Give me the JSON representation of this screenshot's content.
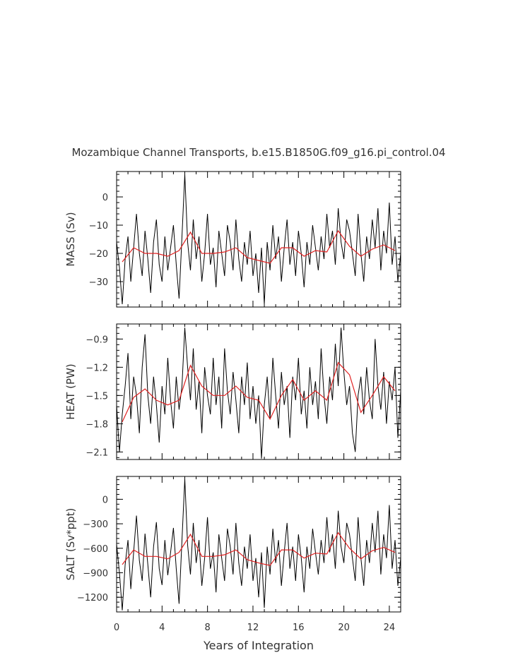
{
  "chart_data": {
    "type": "line",
    "title": "Mozambique Channel Transports, b.e15.B1850G.f09_g16.pi_control.04",
    "xlabel": "Years of Integration",
    "xlim": [
      0,
      25
    ],
    "xticks": [
      "0",
      "4",
      "8",
      "12",
      "16",
      "20",
      "24"
    ],
    "colors": {
      "monthly": "#000000",
      "annual": "#e02020"
    },
    "panels": [
      {
        "ylabel": "MASS (Sv)",
        "ylim": [
          -39,
          9
        ],
        "yticks": [
          "0",
          "−10",
          "−20",
          "−30"
        ],
        "annual_x": [
          0.5,
          1.5,
          2.5,
          3.5,
          4.5,
          5.5,
          6.5,
          7.5,
          8.5,
          9.5,
          10.5,
          11.5,
          12.5,
          13.5,
          14.5,
          15.5,
          16.5,
          17.5,
          18.5,
          19.5,
          20.5,
          21.5,
          22.5,
          23.5,
          24.5
        ],
        "annual_y": [
          -23,
          -18,
          -20,
          -20,
          -21,
          -19,
          -12.5,
          -20,
          -20,
          -19.5,
          -18,
          -21.5,
          -22.5,
          -23.5,
          -18,
          -18,
          -21,
          -19,
          -19.5,
          -12,
          -17.5,
          -21,
          -18.5,
          -17,
          -19
        ],
        "monthly_x": [
          0.0,
          0.25,
          0.5,
          0.75,
          1.0,
          1.25,
          1.5,
          1.75,
          2.0,
          2.25,
          2.5,
          2.75,
          3.0,
          3.25,
          3.5,
          3.75,
          4.0,
          4.25,
          4.5,
          4.75,
          5.0,
          5.25,
          5.5,
          5.75,
          6.0,
          6.25,
          6.5,
          6.75,
          7.0,
          7.25,
          7.5,
          7.75,
          8.0,
          8.25,
          8.5,
          8.75,
          9.0,
          9.25,
          9.5,
          9.75,
          10.0,
          10.25,
          10.5,
          10.75,
          11.0,
          11.25,
          11.5,
          11.75,
          12.0,
          12.25,
          12.5,
          12.75,
          13.0,
          13.25,
          13.5,
          13.75,
          14.0,
          14.25,
          14.5,
          14.75,
          15.0,
          15.25,
          15.5,
          15.75,
          16.0,
          16.25,
          16.5,
          16.75,
          17.0,
          17.25,
          17.5,
          17.75,
          18.0,
          18.25,
          18.5,
          18.75,
          19.0,
          19.25,
          19.5,
          19.75,
          20.0,
          20.25,
          20.5,
          20.75,
          21.0,
          21.25,
          21.5,
          21.75,
          22.0,
          22.25,
          22.5,
          22.75,
          23.0,
          23.25,
          23.5,
          23.75,
          24.0,
          24.25,
          24.5,
          24.75,
          25.0
        ],
        "monthly_y": [
          -16,
          -25,
          -38,
          -22,
          -14,
          -30,
          -18,
          -6,
          -20,
          -28,
          -12,
          -22,
          -34,
          -16,
          -8,
          -24,
          -30,
          -14,
          -26,
          -18,
          -10,
          -24,
          -36,
          -14,
          8,
          -16,
          -26,
          -8,
          -22,
          -14,
          -30,
          -20,
          -6,
          -24,
          -18,
          -32,
          -12,
          -20,
          -28,
          -10,
          -16,
          -26,
          -8,
          -22,
          -30,
          -16,
          -24,
          -12,
          -28,
          -20,
          -34,
          -18,
          -38,
          -16,
          -26,
          -10,
          -22,
          -14,
          -30,
          -18,
          -8,
          -24,
          -16,
          -28,
          -12,
          -20,
          -32,
          -16,
          -24,
          -10,
          -18,
          -26,
          -14,
          -22,
          -6,
          -18,
          -12,
          -24,
          -4,
          -16,
          -22,
          -8,
          -12,
          -20,
          -28,
          -6,
          -20,
          -30,
          -14,
          -22,
          -8,
          -18,
          -4,
          -26,
          -12,
          -20,
          -2,
          -24,
          -14,
          -30,
          -20
        ]
      },
      {
        "ylabel": "HEAT (PW)",
        "ylim": [
          -2.18,
          -0.74
        ],
        "yticks": [
          "−0.9",
          "−1.2",
          "−1.5",
          "−1.8",
          "−2.1"
        ],
        "annual_x": [
          0.5,
          1.5,
          2.5,
          3.5,
          4.5,
          5.5,
          6.5,
          7.5,
          8.5,
          9.5,
          10.5,
          11.5,
          12.5,
          13.5,
          14.5,
          15.5,
          16.5,
          17.5,
          18.5,
          19.5,
          20.5,
          21.5,
          22.5,
          23.5,
          24.5
        ],
        "annual_y": [
          -1.78,
          -1.52,
          -1.43,
          -1.55,
          -1.6,
          -1.55,
          -1.18,
          -1.4,
          -1.5,
          -1.5,
          -1.4,
          -1.52,
          -1.55,
          -1.75,
          -1.5,
          -1.33,
          -1.55,
          -1.45,
          -1.55,
          -1.15,
          -1.28,
          -1.68,
          -1.5,
          -1.3,
          -1.45
        ],
        "monthly_x": [
          0.0,
          0.25,
          0.5,
          0.75,
          1.0,
          1.25,
          1.5,
          1.75,
          2.0,
          2.25,
          2.5,
          2.75,
          3.0,
          3.25,
          3.5,
          3.75,
          4.0,
          4.25,
          4.5,
          4.75,
          5.0,
          5.25,
          5.5,
          5.75,
          6.0,
          6.25,
          6.5,
          6.75,
          7.0,
          7.25,
          7.5,
          7.75,
          8.0,
          8.25,
          8.5,
          8.75,
          9.0,
          9.25,
          9.5,
          9.75,
          10.0,
          10.25,
          10.5,
          10.75,
          11.0,
          11.25,
          11.5,
          11.75,
          12.0,
          12.25,
          12.5,
          12.75,
          13.0,
          13.25,
          13.5,
          13.75,
          14.0,
          14.25,
          14.5,
          14.75,
          15.0,
          15.25,
          15.5,
          15.75,
          16.0,
          16.25,
          16.5,
          16.75,
          17.0,
          17.25,
          17.5,
          17.75,
          18.0,
          18.25,
          18.5,
          18.75,
          19.0,
          19.25,
          19.5,
          19.75,
          20.0,
          20.25,
          20.5,
          20.75,
          21.0,
          21.25,
          21.5,
          21.75,
          22.0,
          22.25,
          22.5,
          22.75,
          23.0,
          23.25,
          23.5,
          23.75,
          24.0,
          24.25,
          24.5,
          24.75,
          25.0
        ],
        "monthly_y": [
          -1.6,
          -2.1,
          -1.7,
          -1.4,
          -1.05,
          -1.75,
          -1.3,
          -1.5,
          -1.9,
          -1.2,
          -0.85,
          -1.5,
          -1.8,
          -1.3,
          -1.6,
          -2.0,
          -1.4,
          -1.7,
          -1.1,
          -1.55,
          -1.85,
          -1.3,
          -1.65,
          -1.4,
          -0.78,
          -1.2,
          -1.55,
          -1.0,
          -1.65,
          -1.35,
          -1.9,
          -1.2,
          -1.5,
          -1.7,
          -1.1,
          -1.6,
          -1.3,
          -1.85,
          -1.0,
          -1.45,
          -1.7,
          -1.25,
          -1.55,
          -1.9,
          -1.3,
          -1.6,
          -1.15,
          -1.75,
          -1.4,
          -1.8,
          -1.5,
          -2.17,
          -1.6,
          -1.3,
          -1.75,
          -1.1,
          -1.5,
          -1.85,
          -1.25,
          -1.6,
          -1.4,
          -1.95,
          -1.3,
          -1.55,
          -1.1,
          -1.7,
          -1.45,
          -1.85,
          -1.2,
          -1.6,
          -1.35,
          -1.75,
          -1.0,
          -1.5,
          -1.8,
          -1.3,
          -1.55,
          -0.95,
          -1.4,
          -0.78,
          -1.25,
          -1.6,
          -1.4,
          -1.9,
          -2.1,
          -1.5,
          -1.3,
          -1.7,
          -1.2,
          -1.55,
          -1.75,
          -0.9,
          -1.4,
          -1.65,
          -1.25,
          -1.8,
          -1.35,
          -1.55,
          -1.2,
          -1.95,
          -1.45
        ]
      },
      {
        "ylabel": "SALT (Sv*ppt)",
        "ylim": [
          -1380,
          280
        ],
        "yticks": [
          "0",
          "−300",
          "−600",
          "−900",
          "−1200"
        ],
        "annual_x": [
          0.5,
          1.5,
          2.5,
          3.5,
          4.5,
          5.5,
          6.5,
          7.5,
          8.5,
          9.5,
          10.5,
          11.5,
          12.5,
          13.5,
          14.5,
          15.5,
          16.5,
          17.5,
          18.5,
          19.5,
          20.5,
          21.5,
          22.5,
          23.5,
          24.5
        ],
        "annual_y": [
          -800,
          -620,
          -700,
          -700,
          -730,
          -650,
          -430,
          -700,
          -700,
          -680,
          -620,
          -740,
          -780,
          -810,
          -620,
          -620,
          -720,
          -660,
          -670,
          -410,
          -600,
          -730,
          -630,
          -590,
          -650
        ],
        "monthly_x": [
          0.0,
          0.25,
          0.5,
          0.75,
          1.0,
          1.25,
          1.5,
          1.75,
          2.0,
          2.25,
          2.5,
          2.75,
          3.0,
          3.25,
          3.5,
          3.75,
          4.0,
          4.25,
          4.5,
          4.75,
          5.0,
          5.25,
          5.5,
          5.75,
          6.0,
          6.25,
          6.5,
          6.75,
          7.0,
          7.25,
          7.5,
          7.75,
          8.0,
          8.25,
          8.5,
          8.75,
          9.0,
          9.25,
          9.5,
          9.75,
          10.0,
          10.25,
          10.5,
          10.75,
          11.0,
          11.25,
          11.5,
          11.75,
          12.0,
          12.25,
          12.5,
          12.75,
          13.0,
          13.25,
          13.5,
          13.75,
          14.0,
          14.25,
          14.5,
          14.75,
          15.0,
          15.25,
          15.5,
          15.75,
          16.0,
          16.25,
          16.5,
          16.75,
          17.0,
          17.25,
          17.5,
          17.75,
          18.0,
          18.25,
          18.5,
          18.75,
          19.0,
          19.25,
          19.5,
          19.75,
          20.0,
          20.25,
          20.5,
          20.75,
          21.0,
          21.25,
          21.5,
          21.75,
          22.0,
          22.25,
          22.5,
          22.75,
          23.0,
          23.25,
          23.5,
          23.75,
          24.0,
          24.25,
          24.5,
          24.75,
          25.0
        ],
        "monthly_y": [
          -550,
          -900,
          -1360,
          -800,
          -500,
          -1100,
          -650,
          -200,
          -750,
          -1000,
          -420,
          -800,
          -1200,
          -580,
          -280,
          -850,
          -1050,
          -500,
          -930,
          -650,
          -350,
          -850,
          -1280,
          -500,
          250,
          -560,
          -920,
          -290,
          -780,
          -500,
          -1060,
          -720,
          -220,
          -850,
          -650,
          -1140,
          -430,
          -720,
          -1000,
          -360,
          -580,
          -920,
          -290,
          -780,
          -1060,
          -580,
          -850,
          -430,
          -1000,
          -720,
          -1200,
          -650,
          -1330,
          -580,
          -920,
          -360,
          -780,
          -500,
          -1060,
          -650,
          -290,
          -850,
          -580,
          -1000,
          -430,
          -720,
          -1140,
          -580,
          -850,
          -360,
          -650,
          -920,
          -500,
          -780,
          -220,
          -650,
          -430,
          -850,
          -140,
          -580,
          -780,
          -290,
          -430,
          -720,
          -1000,
          -220,
          -720,
          -1060,
          -500,
          -780,
          -290,
          -650,
          -140,
          -920,
          -430,
          -720,
          -70,
          -850,
          -500,
          -1060,
          -720
        ]
      }
    ]
  }
}
